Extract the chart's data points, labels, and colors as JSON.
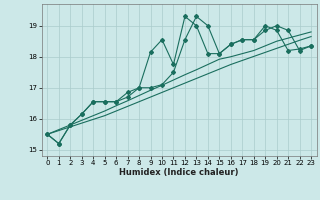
{
  "xlabel": "Humidex (Indice chaleur)",
  "ylabel": "",
  "bg_color": "#cce8e8",
  "grid_color": "#aacccc",
  "line_color": "#1a6e5e",
  "xlim": [
    -0.5,
    23.5
  ],
  "ylim": [
    14.8,
    19.7
  ],
  "yticks": [
    15,
    16,
    17,
    18,
    19
  ],
  "xticks": [
    0,
    1,
    2,
    3,
    4,
    5,
    6,
    7,
    8,
    9,
    10,
    11,
    12,
    13,
    14,
    15,
    16,
    17,
    18,
    19,
    20,
    21,
    22,
    23
  ],
  "series": {
    "s1": [
      15.5,
      15.2,
      15.8,
      16.15,
      16.55,
      16.55,
      16.55,
      16.7,
      17.0,
      18.15,
      18.55,
      17.75,
      19.3,
      19.0,
      18.1,
      18.1,
      18.4,
      18.55,
      18.55,
      19.0,
      18.85,
      18.2,
      18.25,
      18.35
    ],
    "s2": [
      15.5,
      15.2,
      15.8,
      16.15,
      16.55,
      16.55,
      16.55,
      16.85,
      17.0,
      17.0,
      17.1,
      17.5,
      18.55,
      19.3,
      19.0,
      18.1,
      18.4,
      18.55,
      18.55,
      18.85,
      19.0,
      18.85,
      18.2,
      18.35
    ],
    "s3": [
      15.5,
      15.62,
      15.74,
      15.86,
      15.98,
      16.1,
      16.25,
      16.4,
      16.55,
      16.7,
      16.85,
      17.0,
      17.15,
      17.3,
      17.45,
      17.6,
      17.75,
      17.88,
      18.01,
      18.14,
      18.27,
      18.4,
      18.53,
      18.65
    ],
    "s4": [
      15.5,
      15.65,
      15.8,
      15.95,
      16.1,
      16.25,
      16.42,
      16.58,
      16.75,
      16.92,
      17.08,
      17.25,
      17.42,
      17.58,
      17.75,
      17.92,
      18.0,
      18.1,
      18.2,
      18.35,
      18.5,
      18.6,
      18.7,
      18.8
    ]
  }
}
